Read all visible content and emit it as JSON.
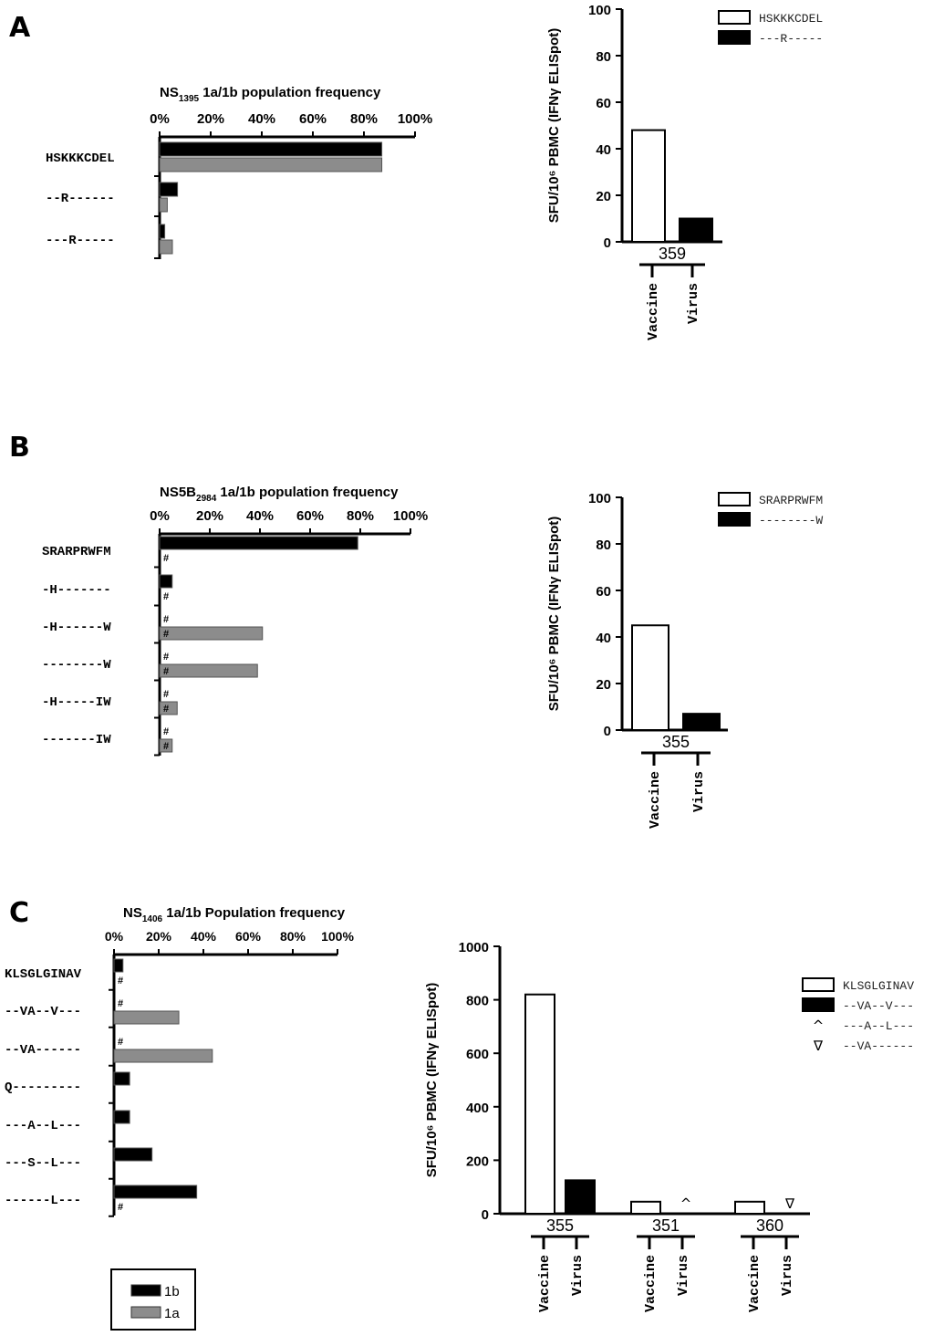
{
  "chart_data": [
    {
      "panel": "A",
      "type": "bar",
      "orientation": "horizontal",
      "title_main": "NS",
      "title_sub": "1395",
      "title_rest": " 1a/1b population frequency",
      "categories": [
        "HSKKKCDEL",
        "--R------",
        "---R-----"
      ],
      "series": [
        {
          "name": "1b",
          "color": "#000000",
          "values": [
            87,
            7,
            2
          ]
        },
        {
          "name": "1a",
          "color": "#8c8c8c",
          "values": [
            87,
            3,
            5
          ]
        }
      ],
      "xticks": [
        "0%",
        "20%",
        "40%",
        "60%",
        "80%",
        "100%"
      ],
      "xlim": [
        0,
        100
      ],
      "hash": [
        false,
        false,
        false,
        false,
        false,
        false
      ]
    },
    {
      "panel": "A",
      "type": "bar",
      "ylabel": "SFU/10⁶ PBMC (IFNγ ELISpot)",
      "ylim": [
        0,
        100
      ],
      "yticks": [
        "0",
        "20",
        "40",
        "60",
        "80",
        "100"
      ],
      "legend": [
        {
          "label": "HSKKKCDEL",
          "fill": "#ffffff"
        },
        {
          "label": "---R-----",
          "fill": "#000000"
        }
      ],
      "groups": [
        {
          "donor": "359",
          "vaccine": 48,
          "virus": 10,
          "vaccine_label": "Vaccine",
          "virus_label": "Virus"
        }
      ]
    },
    {
      "panel": "B",
      "type": "bar",
      "orientation": "horizontal",
      "title_main": "NS5B",
      "title_sub": "2984",
      "title_rest": "  1a/1b population frequency",
      "categories": [
        "SRARPRWFM",
        "-H-------",
        "-H------W",
        "--------W",
        "-H-----IW",
        "-------IW"
      ],
      "series": [
        {
          "name": "1b",
          "color": "#000000",
          "values": [
            79,
            5,
            0,
            0,
            0,
            0
          ]
        },
        {
          "name": "1a",
          "color": "#8c8c8c",
          "values": [
            0,
            0,
            41,
            39,
            7,
            5
          ]
        }
      ],
      "xticks": [
        "0%",
        "20%",
        "40%",
        "60%",
        "80%",
        "100%"
      ],
      "xlim": [
        0,
        100
      ],
      "hash": [
        false,
        true,
        true,
        true,
        true,
        true,
        true,
        true,
        true,
        true,
        true,
        true
      ]
    },
    {
      "panel": "B",
      "type": "bar",
      "ylabel": "SFU/10⁶ PBMC (IFNγ ELISpot)",
      "ylim": [
        0,
        100
      ],
      "yticks": [
        "0",
        "20",
        "40",
        "60",
        "80",
        "100"
      ],
      "legend": [
        {
          "label": "SRARPRWFM",
          "fill": "#ffffff"
        },
        {
          "label": "--------W",
          "fill": "#000000"
        }
      ],
      "groups": [
        {
          "donor": "355",
          "vaccine": 45,
          "virus": 7,
          "vaccine_label": "Vaccine",
          "virus_label": "Virus"
        }
      ]
    },
    {
      "panel": "C",
      "type": "bar",
      "orientation": "horizontal",
      "title_main": "NS",
      "title_sub": "1406",
      "title_rest": " 1a/1b Population frequency",
      "categories": [
        "KLSGLGINAV",
        "--VA--V---",
        "--VA------",
        "Q---------",
        "---A--L---",
        "---S--L---",
        "------L---"
      ],
      "series": [
        {
          "name": "1b",
          "color": "#000000",
          "values": [
            4,
            0,
            0,
            7,
            7,
            17,
            37
          ]
        },
        {
          "name": "1a",
          "color": "#8c8c8c",
          "values": [
            0,
            29,
            44,
            0,
            0,
            0,
            0
          ]
        }
      ],
      "xticks": [
        "0%",
        "20%",
        "40%",
        "60%",
        "80%",
        "100%"
      ],
      "xlim": [
        0,
        100
      ],
      "hash": [
        false,
        true,
        true,
        false,
        true,
        false,
        true,
        false,
        true,
        false,
        true,
        false,
        true,
        true
      ],
      "key": [
        {
          "label": "1b",
          "fill": "#000000"
        },
        {
          "label": "1a",
          "fill": "#8c8c8c"
        }
      ]
    },
    {
      "panel": "C",
      "type": "bar",
      "ylabel": "SFU/10⁶ PBMC (IFNγ ELISpot)",
      "ylim": [
        0,
        1000
      ],
      "yticks": [
        "0",
        "200",
        "400",
        "600",
        "800",
        "1000"
      ],
      "legend": [
        {
          "label": "KLSGLGINAV",
          "fill": "#ffffff",
          "symbol": ""
        },
        {
          "label": "--VA--V---",
          "fill": "#000000",
          "symbol": ""
        },
        {
          "label": "---A--L---",
          "fill": "",
          "symbol": "^"
        },
        {
          "label": "--VA------",
          "fill": "",
          "symbol": "∇"
        }
      ],
      "groups": [
        {
          "donor": "355",
          "vaccine": 820,
          "virus": 125,
          "virus_marker": "",
          "vaccine_label": "Vaccine",
          "virus_label": "Virus"
        },
        {
          "donor": "351",
          "vaccine": 45,
          "virus": 0,
          "virus_marker": "^",
          "vaccine_label": "Vaccine",
          "virus_label": "Virus"
        },
        {
          "donor": "360",
          "vaccine": 45,
          "virus": 0,
          "virus_marker": "∇",
          "vaccine_label": "Vaccine",
          "virus_label": "Virus"
        }
      ]
    }
  ],
  "panels": {
    "a": "A",
    "b": "B",
    "c": "C"
  }
}
